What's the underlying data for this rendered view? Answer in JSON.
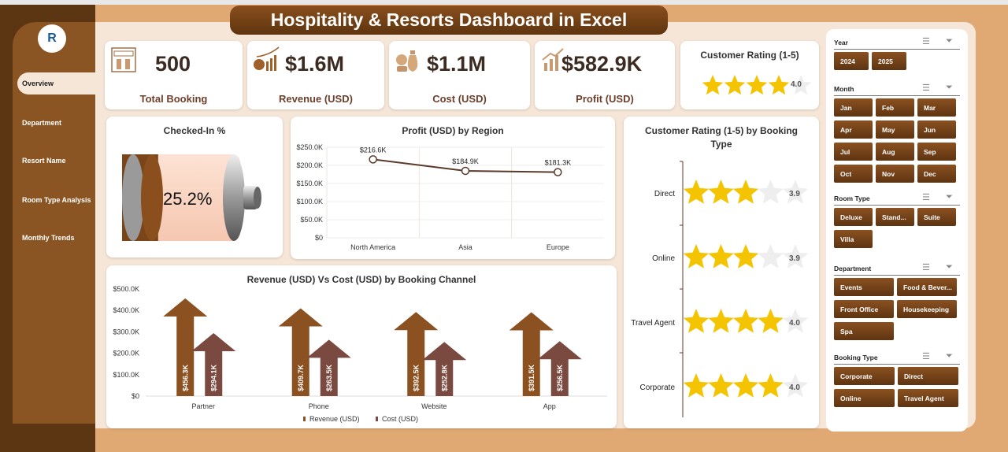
{
  "title": "Hospitality & Resorts Dashboard in Excel",
  "nav": [
    {
      "label": "Overview",
      "active": true
    },
    {
      "label": "Department"
    },
    {
      "label": "Resort Name"
    },
    {
      "label": "Room Type Analysis"
    },
    {
      "label": "Monthly Trends"
    }
  ],
  "kpis": [
    {
      "value": "500",
      "label": "Total Booking",
      "icon": "book-now-icon"
    },
    {
      "value": "$1.6M",
      "label": "Revenue (USD)",
      "icon": "money-growth-icon"
    },
    {
      "value": "$1.1M",
      "label": "Cost (USD)",
      "icon": "money-bag-icon"
    },
    {
      "value": "$582.9K",
      "label": "Profit (USD)",
      "icon": "profit-growth-icon"
    }
  ],
  "rating_card": {
    "title": "Customer Rating (1-5)",
    "value": "4.0",
    "rating": 4.0
  },
  "checked_in": {
    "title": "Checked-In %",
    "value": "25.2%",
    "fraction": 0.252
  },
  "colors": {
    "dark_brown": "#5c3513",
    "revenue": "#8b5120",
    "cost": "#7a4a40",
    "star": "#f5c400"
  },
  "chart_data": [
    {
      "type": "line",
      "title": "Profit (USD) by Region",
      "categories": [
        "North America",
        "Asia",
        "Europe"
      ],
      "values": [
        216.6,
        184.9,
        181.3
      ],
      "data_labels": [
        "$216.6K",
        "$184.9K",
        "$181.3K"
      ],
      "ylim": [
        0,
        250
      ],
      "yticks": [
        "$0",
        "$50.0K",
        "$100.0K",
        "$150.0K",
        "$200.0K",
        "$250.0K"
      ],
      "grid": true
    },
    {
      "type": "bar",
      "title": "Revenue (USD) Vs Cost (USD) by Booking Channel",
      "categories": [
        "Partner",
        "Phone",
        "Website",
        "App"
      ],
      "series": [
        {
          "name": "Revenue (USD)",
          "values": [
            456.3,
            409.7,
            392.5,
            391.5
          ],
          "labels": [
            "$456.3K",
            "$409.7K",
            "$392.5K",
            "$391.5K"
          ]
        },
        {
          "name": "Cost (USD)",
          "values": [
            294.1,
            263.5,
            252.8,
            256.5
          ],
          "labels": [
            "$294.1K",
            "$263.5K",
            "$252.8K",
            "$256.5K"
          ]
        }
      ],
      "ylim": [
        0,
        500
      ],
      "yticks": [
        "$0",
        "$100.0K",
        "$200.0K",
        "$300.0K",
        "$400.0K",
        "$500.0K"
      ],
      "legend": "bottom"
    },
    {
      "type": "bar",
      "title": "Customer Rating (1-5) by Booking Type",
      "categories": [
        "Direct",
        "Online",
        "Travel Agent",
        "Corporate"
      ],
      "values": [
        3.9,
        3.9,
        4.0,
        4.0
      ],
      "labels": [
        "3.9",
        "3.9",
        "4.0",
        "4.0"
      ]
    }
  ],
  "slicers": [
    {
      "title": "Year",
      "items": [
        "2024",
        "2025"
      ]
    },
    {
      "title": "Month",
      "items": [
        "Jan",
        "Feb",
        "Mar",
        "Apr",
        "May",
        "Jun",
        "Jul",
        "Aug",
        "Sep",
        "Oct",
        "Nov",
        "Dec"
      ]
    },
    {
      "title": "Room Type",
      "items": [
        "Deluxe",
        "Stand...",
        "Suite",
        "Villa"
      ]
    },
    {
      "title": "Department",
      "items": [
        "Events",
        "Food & Bever...",
        "Front Office",
        "Housekeeping",
        "Spa"
      ]
    },
    {
      "title": "Booking Type",
      "items": [
        "Corporate",
        "Direct",
        "Online",
        "Travel Agent"
      ]
    }
  ]
}
